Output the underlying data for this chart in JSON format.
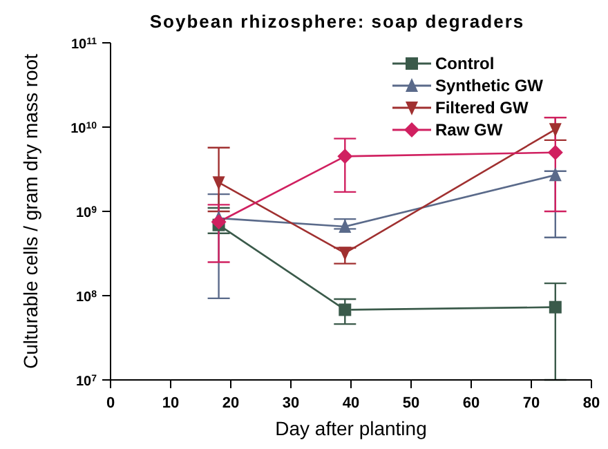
{
  "chart_data": {
    "type": "line",
    "title": "Soybean rhizosphere:  soap degraders",
    "xlabel": "Day after planting",
    "ylabel": "Culturable cells / gram dry mass root",
    "x": [
      18,
      39,
      74
    ],
    "log": "y",
    "xlim": [
      0,
      80
    ],
    "xticks": [
      0,
      10,
      20,
      30,
      40,
      50,
      60,
      70,
      80
    ],
    "ylim": [
      10000000,
      100000000000
    ],
    "yticks": [
      {
        "value": 10000000,
        "label": "10$^{7}$"
      },
      {
        "value": 100000000,
        "label": "10$^{8}$"
      },
      {
        "value": 1000000000,
        "label": "10$^{9}$"
      },
      {
        "value": 10000000000,
        "label": "10$^{10}$"
      },
      {
        "value": 100000000000,
        "label": "10$^{11}$"
      }
    ],
    "grid": false,
    "legend": "top right",
    "series": [
      {
        "name": "Control",
        "color": "#3a5a4a",
        "marker": "square",
        "values": [
          690000000,
          68000000,
          73000000
        ],
        "errors": [
          [
            550000000,
            1100000000
          ],
          [
            46000000,
            91000000
          ],
          [
            10000000,
            140000000
          ]
        ]
      },
      {
        "name": "Synthetic GW",
        "color": "#5a6a8a",
        "marker": "triangle",
        "values": [
          830000000,
          660000000,
          2700000000
        ],
        "errors": [
          [
            93000000,
            1600000000
          ],
          [
            620000000,
            810000000
          ],
          [
            490000000,
            3000000000
          ]
        ]
      },
      {
        "name": "Filtered GW",
        "color": "#a03030",
        "marker": "triangle-down",
        "values": [
          2200000000,
          320000000,
          9400000000
        ],
        "errors": [
          [
            1000000000,
            5700000000
          ],
          [
            240000000,
            370000000
          ],
          [
            7000000000,
            13000000000
          ]
        ]
      },
      {
        "name": "Raw GW",
        "color": "#d02060",
        "marker": "diamond",
        "values": [
          750000000,
          4500000000,
          5000000000
        ],
        "errors": [
          [
            250000000,
            1200000000
          ],
          [
            1700000000,
            7300000000
          ],
          [
            1000000000,
            13000000000
          ]
        ]
      }
    ]
  }
}
